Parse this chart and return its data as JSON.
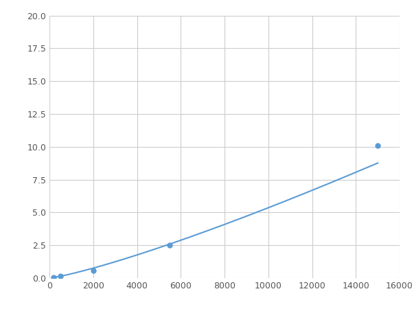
{
  "x": [
    200,
    500,
    2000,
    5500,
    15000
  ],
  "y": [
    0.05,
    0.15,
    0.6,
    2.5,
    10.1
  ],
  "line_color": "#5b9bd5",
  "marker_color": "#5b9bd5",
  "marker_size": 5,
  "linewidth": 1.5,
  "xlim": [
    0,
    16000
  ],
  "ylim": [
    0,
    20
  ],
  "xticks": [
    0,
    2000,
    4000,
    6000,
    8000,
    10000,
    12000,
    14000,
    16000
  ],
  "yticks": [
    0.0,
    2.5,
    5.0,
    7.5,
    10.0,
    12.5,
    15.0,
    17.5,
    20.0
  ],
  "grid_color": "#cccccc",
  "background_color": "#ffffff",
  "figwidth": 6.0,
  "figheight": 4.5,
  "dpi": 100
}
